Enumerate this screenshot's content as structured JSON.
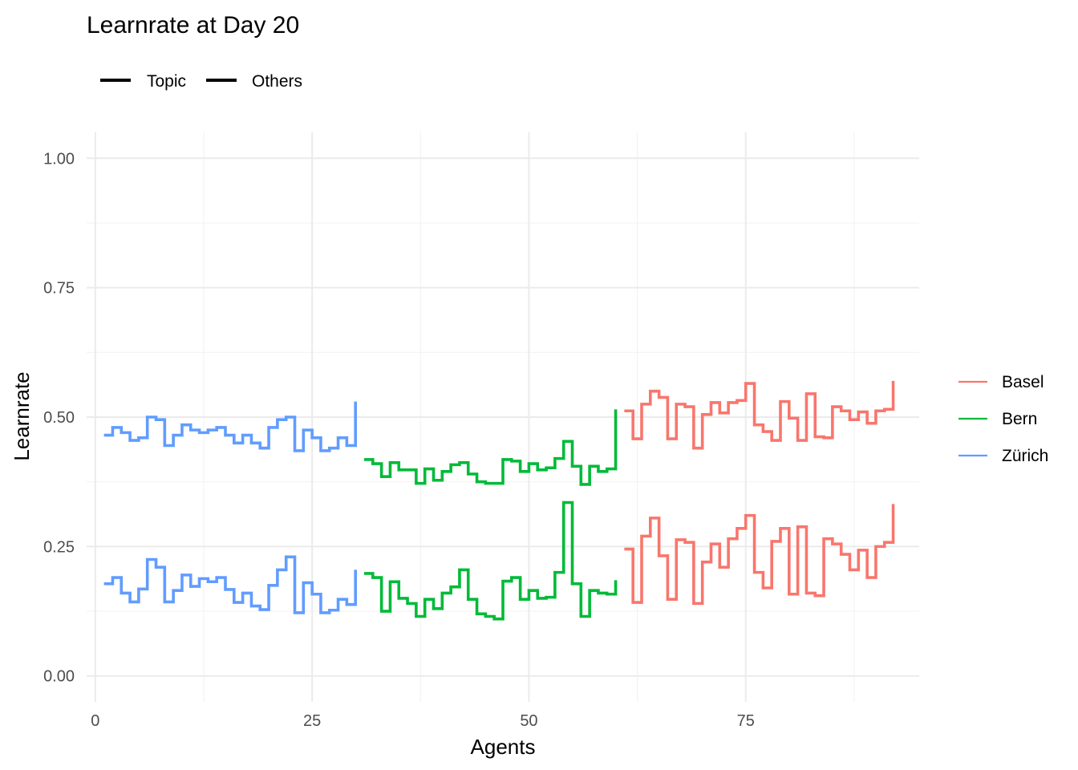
{
  "chart_data": {
    "type": "line",
    "step": true,
    "title": "Learnrate at Day 20",
    "xlabel": "Agents",
    "ylabel": "Learnrate",
    "xlim": [
      -1,
      95
    ],
    "ylim": [
      -0.05,
      1.05
    ],
    "x_ticks": [
      0,
      25,
      50,
      75
    ],
    "x_tick_labels": [
      "0",
      "25",
      "50",
      "75"
    ],
    "y_ticks": [
      0,
      0.25,
      0.5,
      0.75,
      1.0
    ],
    "y_tick_labels": [
      "0.00",
      "0.25",
      "0.50",
      "0.75",
      "1.00"
    ],
    "grid": true,
    "linetype_legend": {
      "position": "top-left",
      "items": [
        {
          "label": "Topic",
          "color": "#000000"
        },
        {
          "label": "Others",
          "color": "#000000"
        }
      ]
    },
    "color_legend": {
      "position": "right",
      "items": [
        {
          "label": "Basel",
          "color": "#F8766D"
        },
        {
          "label": "Bern",
          "color": "#00BA38"
        },
        {
          "label": "Zürich",
          "color": "#619CFF"
        }
      ]
    },
    "series": [
      {
        "name": "Zürich",
        "line": "Others",
        "color": "#619CFF",
        "x_start": 1,
        "values": [
          0.465,
          0.48,
          0.47,
          0.455,
          0.46,
          0.5,
          0.495,
          0.445,
          0.465,
          0.485,
          0.475,
          0.47,
          0.475,
          0.48,
          0.465,
          0.45,
          0.465,
          0.45,
          0.44,
          0.48,
          0.495,
          0.5,
          0.435,
          0.475,
          0.46,
          0.435,
          0.44,
          0.46,
          0.445,
          0.53
        ]
      },
      {
        "name": "Zürich",
        "line": "Topic",
        "color": "#619CFF",
        "x_start": 1,
        "values": [
          0.178,
          0.19,
          0.16,
          0.143,
          0.168,
          0.225,
          0.21,
          0.143,
          0.165,
          0.195,
          0.173,
          0.188,
          0.182,
          0.19,
          0.167,
          0.142,
          0.16,
          0.135,
          0.128,
          0.175,
          0.205,
          0.23,
          0.122,
          0.18,
          0.158,
          0.122,
          0.127,
          0.148,
          0.138,
          0.205
        ]
      },
      {
        "name": "Bern",
        "line": "Others",
        "color": "#00BA38",
        "x_start": 31,
        "values": [
          0.418,
          0.41,
          0.385,
          0.412,
          0.398,
          0.398,
          0.372,
          0.4,
          0.378,
          0.395,
          0.408,
          0.412,
          0.39,
          0.375,
          0.372,
          0.372,
          0.418,
          0.415,
          0.395,
          0.41,
          0.398,
          0.402,
          0.42,
          0.453,
          0.405,
          0.37,
          0.405,
          0.395,
          0.4,
          0.515
        ]
      },
      {
        "name": "Bern",
        "line": "Topic",
        "color": "#00BA38",
        "x_start": 31,
        "values": [
          0.198,
          0.19,
          0.125,
          0.182,
          0.15,
          0.14,
          0.115,
          0.148,
          0.13,
          0.16,
          0.172,
          0.205,
          0.148,
          0.12,
          0.115,
          0.11,
          0.183,
          0.19,
          0.148,
          0.165,
          0.15,
          0.152,
          0.2,
          0.335,
          0.178,
          0.115,
          0.165,
          0.16,
          0.158,
          0.185
        ]
      },
      {
        "name": "Basel",
        "line": "Others",
        "color": "#F8766D",
        "x_start": 61,
        "values": [
          0.512,
          0.458,
          0.525,
          0.55,
          0.538,
          0.458,
          0.525,
          0.52,
          0.44,
          0.505,
          0.528,
          0.508,
          0.528,
          0.532,
          0.565,
          0.485,
          0.472,
          0.455,
          0.53,
          0.498,
          0.455,
          0.545,
          0.462,
          0.46,
          0.52,
          0.512,
          0.495,
          0.51,
          0.488,
          0.512,
          0.515,
          0.57
        ]
      },
      {
        "name": "Basel",
        "line": "Topic",
        "color": "#F8766D",
        "x_start": 61,
        "values": [
          0.245,
          0.142,
          0.27,
          0.305,
          0.232,
          0.148,
          0.263,
          0.258,
          0.14,
          0.22,
          0.255,
          0.21,
          0.265,
          0.285,
          0.31,
          0.2,
          0.17,
          0.26,
          0.285,
          0.158,
          0.288,
          0.16,
          0.155,
          0.265,
          0.255,
          0.235,
          0.205,
          0.243,
          0.19,
          0.25,
          0.258,
          0.332
        ]
      }
    ]
  }
}
